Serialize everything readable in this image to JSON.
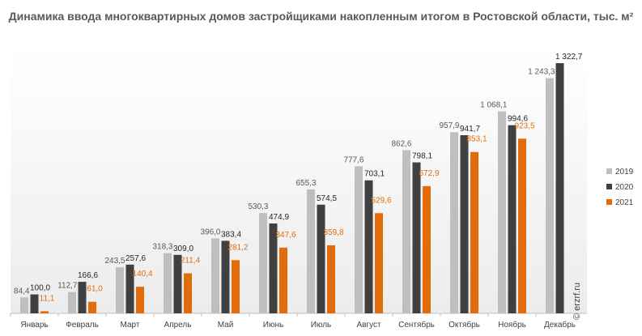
{
  "chart_data": {
    "type": "bar",
    "title": "Динамика ввода многоквартирных домов застройщиками накопленным итогом в Ростовской области, тыс. м²",
    "categories": [
      "Январь",
      "Февраль",
      "Март",
      "Апрель",
      "Май",
      "Июнь",
      "Июль",
      "Август",
      "Сентябрь",
      "Октябрь",
      "Ноябрь",
      "Декабрь"
    ],
    "series": [
      {
        "name": "2019",
        "color": "#bfbfbf",
        "label_color": "#595959",
        "values": [
          84.4,
          112.7,
          243.5,
          318.3,
          396.0,
          530.3,
          655.3,
          777.6,
          862.6,
          957.9,
          1068.1,
          1243.3
        ],
        "labels": [
          "84,4",
          "112,7",
          "243,5",
          "318,3",
          "396,0",
          "530,3",
          "655,3",
          "777,6",
          "862,6",
          "957,9",
          "1 068,1",
          "1 243,3"
        ]
      },
      {
        "name": "2020",
        "color": "#404040",
        "label_color": "#262626",
        "values": [
          100.0,
          166.6,
          257.6,
          309.0,
          383.4,
          474.9,
          574.5,
          703.1,
          798.1,
          941.7,
          994.6,
          1322.7
        ],
        "labels": [
          "100,0",
          "166,6",
          "257,6",
          "309,0",
          "383,4",
          "474,9",
          "574,5",
          "703,1",
          "798,1",
          "941,7",
          "994,6",
          "1 322,7"
        ]
      },
      {
        "name": "2021",
        "color": "#e36c0a",
        "label_color": "#e36c0a",
        "values": [
          11.1,
          61.0,
          140.4,
          211.4,
          281.2,
          347.6,
          359.8,
          529.6,
          672.9,
          853.1,
          923.5,
          null
        ],
        "labels": [
          "11,1",
          "61,0",
          "140,4",
          "211,4",
          "281,2",
          "347,6",
          "359,8",
          "529,6",
          "672,9",
          "853,1",
          "923,5",
          null
        ]
      }
    ],
    "ylim": [
      0,
      1350
    ],
    "grid": false,
    "legend": "right",
    "watermark": "© erzrf.ru"
  }
}
